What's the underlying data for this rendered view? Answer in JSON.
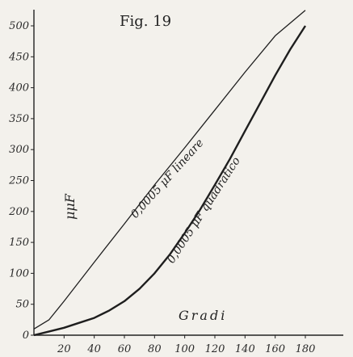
{
  "chart_data": {
    "type": "line",
    "title": "Fig. 19",
    "xlabel": "Gradi",
    "ylabel": "μμF",
    "xlim": [
      0,
      180
    ],
    "ylim": [
      0,
      500
    ],
    "xticks": [
      "20",
      "40",
      "60",
      "80",
      "100",
      "120",
      "140",
      "160",
      "180"
    ],
    "yticks": [
      "0",
      "50",
      "100",
      "150",
      "200",
      "250",
      "300",
      "350",
      "400",
      "450",
      "500"
    ],
    "grid": false,
    "series": [
      {
        "name": "0,0005 μF lineare",
        "x": [
          0,
          10,
          20,
          40,
          60,
          80,
          100,
          120,
          140,
          160,
          180
        ],
        "y": [
          10,
          25,
          55,
          118,
          180,
          243,
          303,
          364,
          425,
          484,
          525
        ]
      },
      {
        "name": "0,0005 μF quadratico",
        "x": [
          0,
          10,
          20,
          30,
          40,
          50,
          60,
          70,
          80,
          90,
          100,
          110,
          120,
          130,
          140,
          150,
          160,
          170,
          180
        ],
        "y": [
          0,
          6,
          12,
          20,
          28,
          40,
          55,
          75,
          100,
          130,
          165,
          202,
          243,
          285,
          330,
          375,
          420,
          462,
          500
        ]
      }
    ]
  }
}
